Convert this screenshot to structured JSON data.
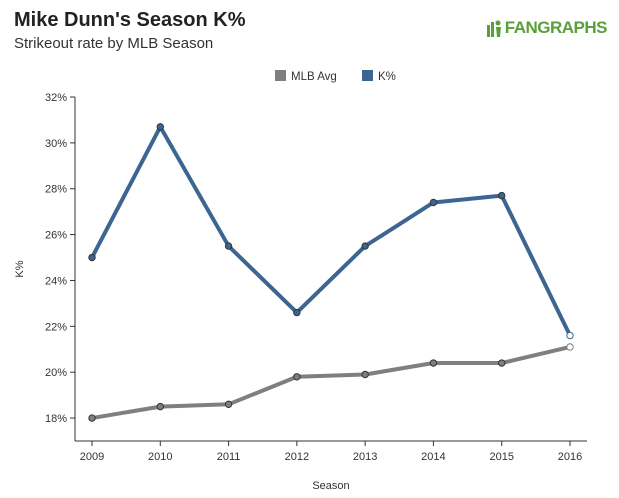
{
  "header": {
    "title": "Mike Dunn's Season K%",
    "subtitle": "Strikeout rate by MLB Season",
    "logo_text": "FANGRAPHS"
  },
  "colors": {
    "k_pct": "#3d6591",
    "mlb_avg": "#7f7f7f",
    "logo": "#5aa038"
  },
  "chart_data": {
    "type": "line",
    "x": [
      2009,
      2010,
      2011,
      2012,
      2013,
      2014,
      2015,
      2016
    ],
    "xlabel": "Season",
    "ylabel": "K%",
    "ylim": [
      17,
      32
    ],
    "yticks": [
      18,
      20,
      22,
      24,
      26,
      28,
      30,
      32
    ],
    "ytick_suffix": "%",
    "legend": "top-center",
    "grid": false,
    "series": [
      {
        "name": "MLB Avg",
        "color": "#7f7f7f",
        "values": [
          18.0,
          18.5,
          18.6,
          19.8,
          19.9,
          20.4,
          20.4,
          21.1
        ]
      },
      {
        "name": "K%",
        "color": "#3d6591",
        "values": [
          25.0,
          30.7,
          25.5,
          22.6,
          25.5,
          27.4,
          27.7,
          21.6
        ]
      }
    ],
    "last_point_hollow": true
  }
}
